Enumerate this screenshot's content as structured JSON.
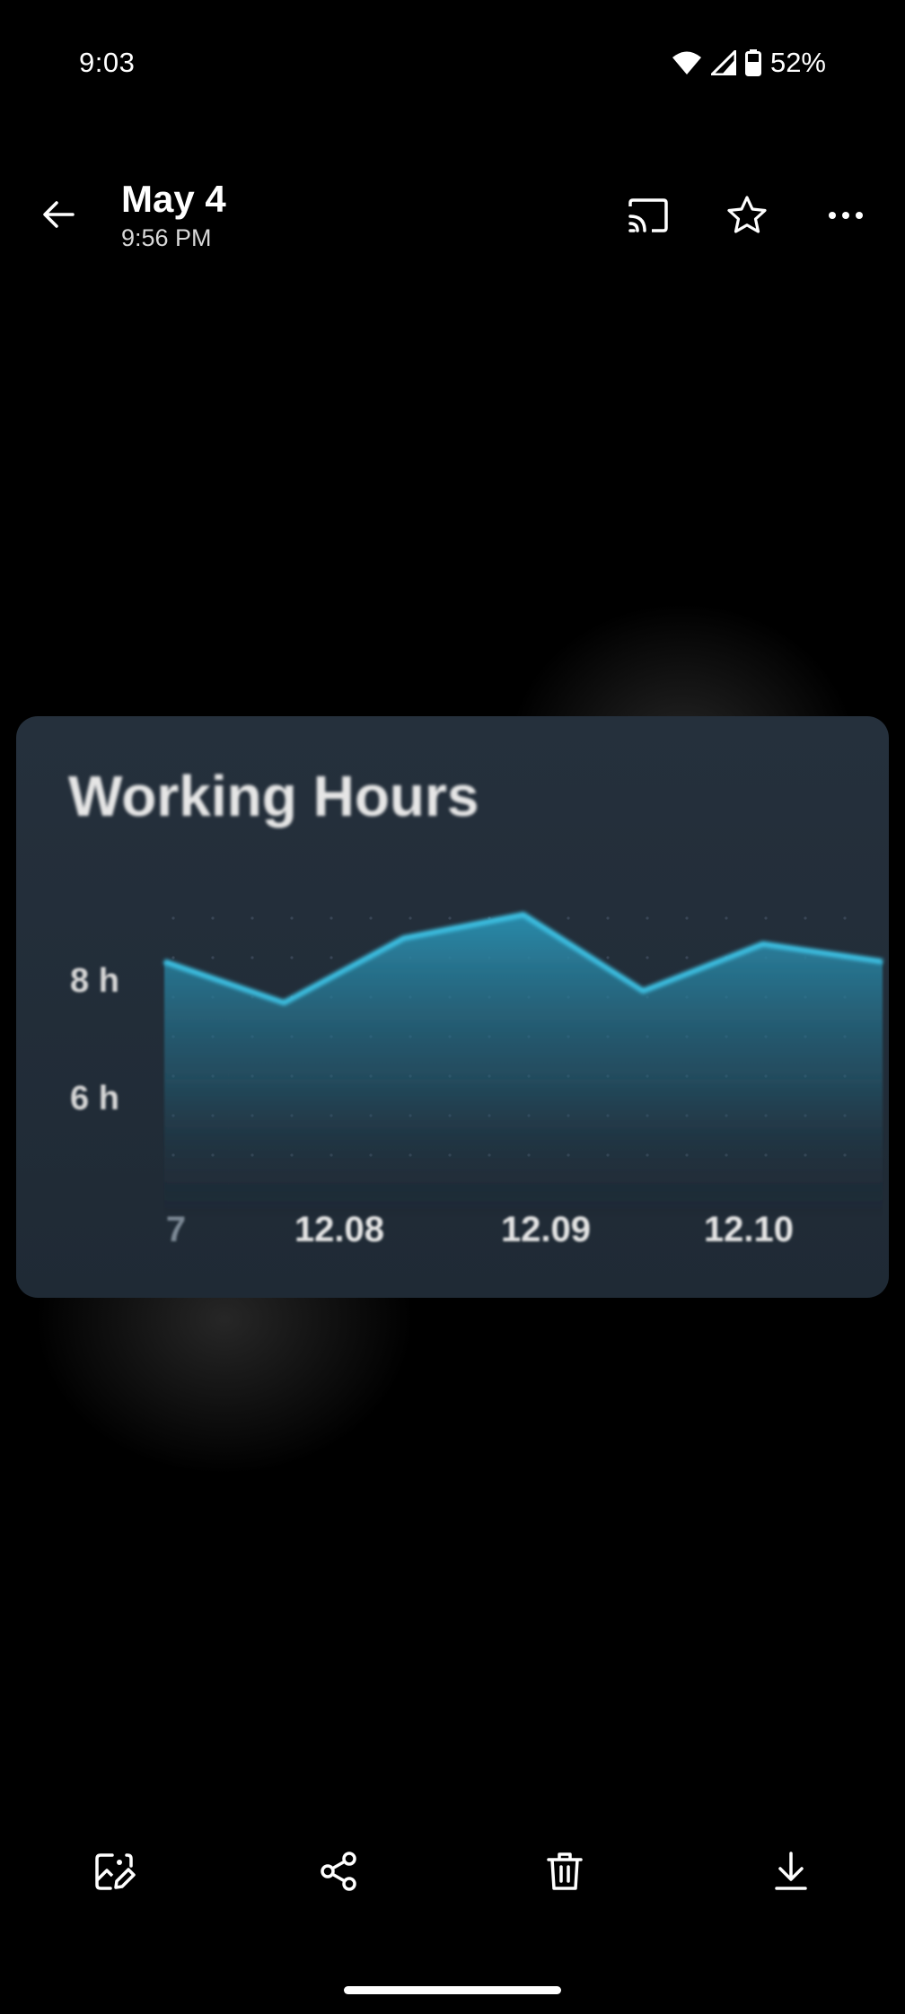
{
  "status": {
    "time": "9:03",
    "battery": "52%",
    "icons": [
      "wifi-icon",
      "cell-signal-icon",
      "battery-icon"
    ]
  },
  "header": {
    "title": "May 4",
    "subtitle": "9:56 PM",
    "back_icon": "arrow-left-icon",
    "actions": [
      "cast-icon",
      "star-icon",
      "more-icon"
    ]
  },
  "image": {
    "chart_data": {
      "type": "area",
      "title": "Working Hours",
      "xlabel": "",
      "ylabel": "",
      "x_tick_labels": [
        "7",
        "12.08",
        "12.09",
        "12.10"
      ],
      "y_tick_labels": [
        "8 h",
        "6 h"
      ],
      "series": [
        {
          "values": [
            8.3,
            7.6,
            8.7,
            9.1,
            7.8,
            8.6,
            8.3
          ]
        }
      ],
      "ylim": [
        5,
        10
      ],
      "grid": false,
      "colors": {
        "line": "#3ec5e8",
        "fill_top": "#2a8fb0",
        "fill_bottom": "#1f2a35",
        "card_bg": "#222d38"
      }
    }
  },
  "toolbar": {
    "buttons": [
      {
        "name": "edit-image-button",
        "icon": "edit-image-icon"
      },
      {
        "name": "share-button",
        "icon": "share-icon"
      },
      {
        "name": "delete-button",
        "icon": "trash-icon"
      },
      {
        "name": "download-button",
        "icon": "download-icon"
      }
    ]
  }
}
